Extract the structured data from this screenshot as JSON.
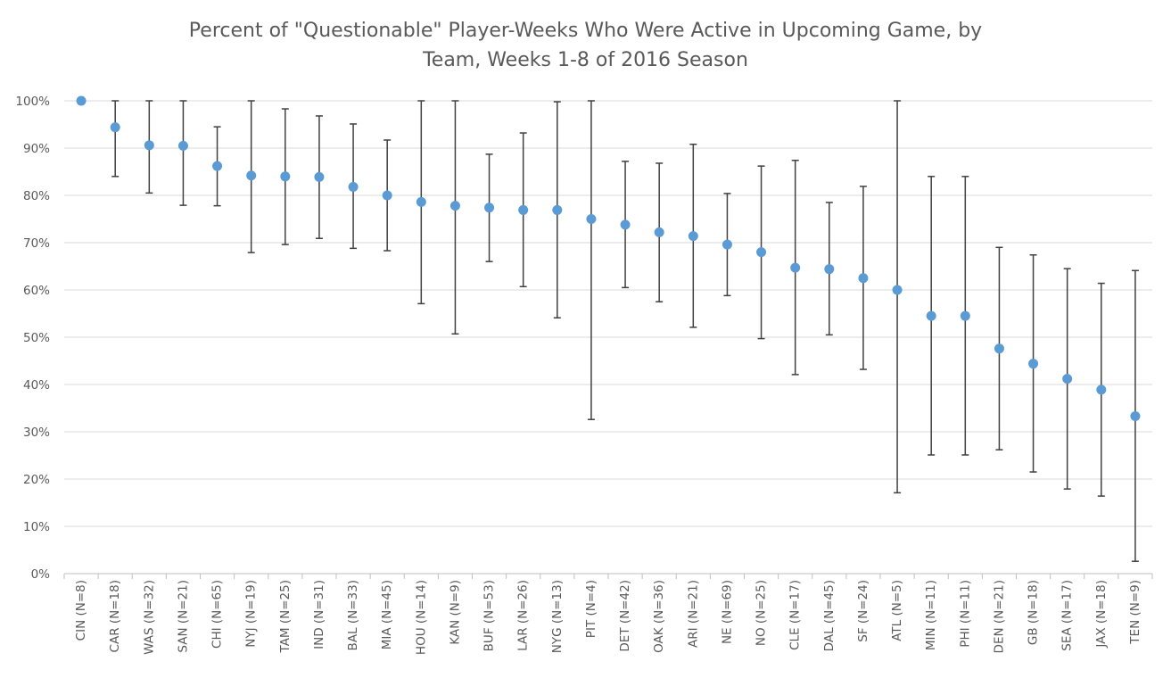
{
  "chart_data": {
    "type": "scatter",
    "title_line1": "Percent of \"Questionable\" Player-Weeks Who Were Active in Upcoming Game, by",
    "title_line2": "Team, Weeks 1-8 of 2016 Season",
    "xlabel": "",
    "ylabel": "",
    "ylim": [
      0,
      1
    ],
    "y_ticks": [
      0,
      0.1,
      0.2,
      0.3,
      0.4,
      0.5,
      0.6,
      0.7,
      0.8,
      0.9,
      1.0
    ],
    "y_tick_labels": [
      "0%",
      "10%",
      "20%",
      "30%",
      "40%",
      "50%",
      "60%",
      "70%",
      "80%",
      "90%",
      "100%"
    ],
    "grid": "horizontal",
    "marker_color": "#5b9bd5",
    "error_bar_color": "#404040",
    "categories": [
      "CIN (N=8)",
      "CAR (N=18)",
      "WAS (N=32)",
      "SAN (N=21)",
      "CHI (N=65)",
      "NYJ (N=19)",
      "TAM (N=25)",
      "IND (N=31)",
      "BAL (N=33)",
      "MIA (N=45)",
      "HOU (N=14)",
      "KAN (N=9)",
      "BUF (N=53)",
      "LAR (N=26)",
      "NYG (N=13)",
      "PIT (N=4)",
      "DET (N=42)",
      "OAK (N=36)",
      "ARI (N=21)",
      "NE (N=69)",
      "NO (N=25)",
      "CLE (N=17)",
      "DAL (N=45)",
      "SF (N=24)",
      "ATL (N=5)",
      "MIN (N=11)",
      "PHI (N=11)",
      "DEN (N=21)",
      "GB (N=18)",
      "SEA (N=17)",
      "JAX (N=18)",
      "TEN (N=9)"
    ],
    "series": [
      {
        "values": [
          1.0,
          0.944,
          0.906,
          0.905,
          0.862,
          0.842,
          0.84,
          0.839,
          0.818,
          0.8,
          0.786,
          0.778,
          0.774,
          0.769,
          0.769,
          0.75,
          0.738,
          0.722,
          0.714,
          0.696,
          0.68,
          0.647,
          0.644,
          0.625,
          0.6,
          0.545,
          0.545,
          0.476,
          0.444,
          0.412,
          0.389,
          0.333
        ],
        "lower": [
          1.0,
          0.84,
          0.805,
          0.779,
          0.778,
          0.679,
          0.696,
          0.709,
          0.688,
          0.683,
          0.571,
          0.507,
          0.66,
          0.607,
          0.541,
          0.326,
          0.605,
          0.575,
          0.521,
          0.588,
          0.497,
          0.421,
          0.505,
          0.432,
          0.171,
          0.251,
          0.251,
          0.262,
          0.215,
          0.179,
          0.164,
          0.026
        ],
        "upper": [
          1.0,
          1.0,
          1.0,
          1.0,
          0.945,
          1.0,
          0.983,
          0.968,
          0.951,
          0.917,
          1.0,
          1.0,
          0.887,
          0.932,
          0.998,
          1.0,
          0.872,
          0.868,
          0.908,
          0.804,
          0.862,
          0.874,
          0.785,
          0.819,
          1.0,
          0.84,
          0.84,
          0.69,
          0.674,
          0.645,
          0.614,
          0.641
        ]
      }
    ]
  }
}
